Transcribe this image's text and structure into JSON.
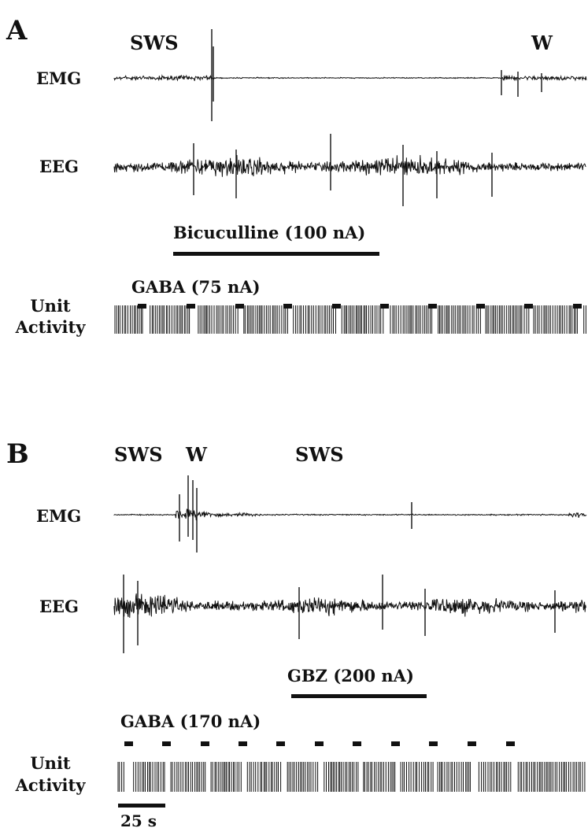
{
  "panels": [
    {
      "letter": "A",
      "states": [
        "SWS",
        "W"
      ],
      "traces": {
        "emg": "EMG",
        "eeg": "EEG",
        "unit_line1": "Unit",
        "unit_line2": "Activity"
      },
      "drug": "Bicuculline (100 nA)",
      "gaba": "GABA (75 nA)"
    },
    {
      "letter": "B",
      "states": [
        "SWS",
        "W",
        "SWS"
      ],
      "traces": {
        "emg": "EMG",
        "eeg": "EEG",
        "unit_line1": "Unit",
        "unit_line2": "Activity"
      },
      "drug": "GBZ (200 nA)",
      "gaba": "GABA (170 nA)"
    }
  ],
  "scale_bar": "25 s",
  "colors": {
    "trace": "#111111",
    "background": "#ffffff"
  }
}
